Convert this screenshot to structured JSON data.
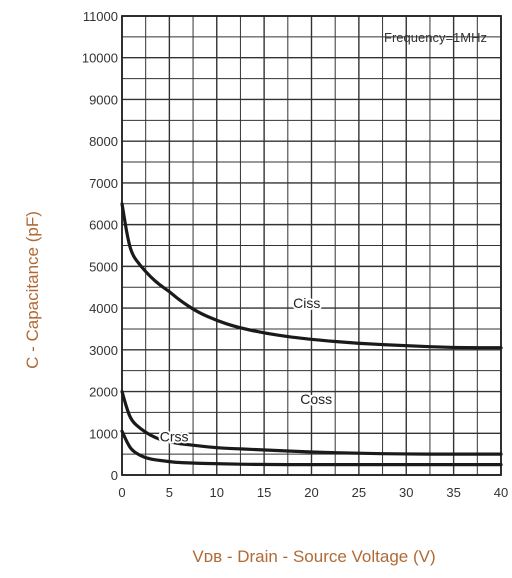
{
  "chart_data": {
    "type": "line",
    "annotation": "Frequency=1MHz",
    "ylabel": "C - Capacitance (pF)",
    "xlabel": "Vᴅʙ - Drain - Source Voltage (V)",
    "xlim": [
      0,
      40
    ],
    "ylim": [
      0,
      11000
    ],
    "grid": true,
    "x_ticks": [
      0,
      5,
      10,
      15,
      20,
      25,
      30,
      35,
      40
    ],
    "y_ticks": [
      0,
      1000,
      2000,
      3000,
      4000,
      5000,
      6000,
      7000,
      8000,
      9000,
      10000,
      11000
    ],
    "series": [
      {
        "name": "Ciss",
        "x": [
          0,
          0.5,
          1,
          2,
          3,
          4,
          5,
          6,
          8,
          10,
          12,
          15,
          18,
          20,
          25,
          30,
          35,
          40
        ],
        "values": [
          6500,
          5800,
          5300,
          5000,
          4750,
          4550,
          4400,
          4200,
          3900,
          3700,
          3550,
          3400,
          3300,
          3250,
          3150,
          3100,
          3050,
          3050
        ]
      },
      {
        "name": "Coss",
        "x": [
          0,
          0.5,
          1,
          2,
          3,
          4,
          5,
          6,
          8,
          10,
          15,
          20,
          25,
          30,
          35,
          40
        ],
        "values": [
          2000,
          1600,
          1300,
          1100,
          950,
          850,
          800,
          750,
          700,
          650,
          600,
          550,
          520,
          500,
          500,
          500
        ]
      },
      {
        "name": "Crss",
        "x": [
          0,
          0.5,
          1,
          2,
          3,
          4,
          5,
          6,
          8,
          10,
          15,
          20,
          25,
          30,
          35,
          40
        ],
        "values": [
          1050,
          800,
          600,
          450,
          380,
          350,
          320,
          300,
          280,
          270,
          250,
          250,
          250,
          250,
          250,
          250
        ]
      }
    ],
    "colors": {
      "curve": "#1a1a1a",
      "grid": "#333333",
      "axis_text": "#333333",
      "label_text": "#b06a35",
      "background": "#ffffff"
    }
  }
}
